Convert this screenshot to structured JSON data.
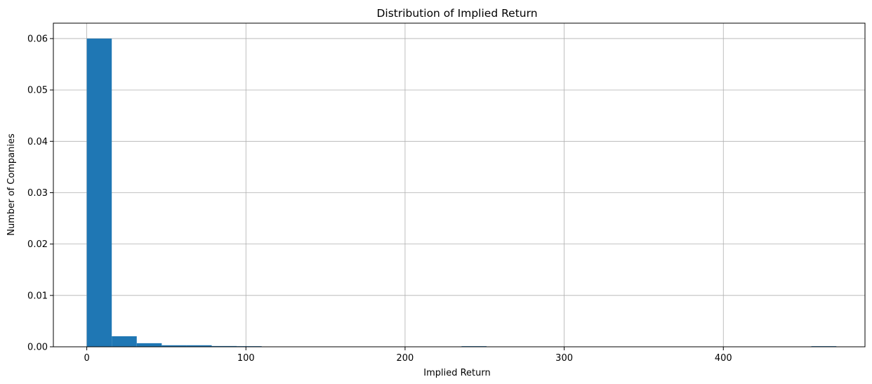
{
  "chart_data": {
    "type": "bar",
    "subtype": "histogram",
    "title": "Distribution of Implied Return",
    "xlabel": "Implied Return",
    "ylabel": "Number of Companies",
    "xlim": [
      -21,
      489
    ],
    "ylim": [
      0,
      0.063
    ],
    "xticks": [
      0,
      100,
      200,
      300,
      400
    ],
    "xtick_labels": [
      "0",
      "100",
      "200",
      "300",
      "400"
    ],
    "yticks": [
      0,
      0.01,
      0.02,
      0.03,
      0.04,
      0.05,
      0.06
    ],
    "ytick_labels": [
      "0.00",
      "0.01",
      "0.02",
      "0.03",
      "0.04",
      "0.05",
      "0.06"
    ],
    "grid": true,
    "bar_color": "#1f77b4",
    "grid_color": "#b0b0b0",
    "bins": [
      {
        "x0": 0,
        "x1": 15.7,
        "value": 0.06
      },
      {
        "x0": 15.7,
        "x1": 31.4,
        "value": 0.00205
      },
      {
        "x0": 31.4,
        "x1": 47.1,
        "value": 0.0007
      },
      {
        "x0": 47.1,
        "x1": 62.8,
        "value": 0.0003
      },
      {
        "x0": 62.8,
        "x1": 78.5,
        "value": 0.0003
      },
      {
        "x0": 78.5,
        "x1": 94.2,
        "value": 0.00015
      },
      {
        "x0": 94.2,
        "x1": 109.9,
        "value": 0.00012
      },
      {
        "x0": 235.5,
        "x1": 251.2,
        "value": 0.00012
      },
      {
        "x0": 455.3,
        "x1": 471.0,
        "value": 0.00012
      }
    ]
  }
}
